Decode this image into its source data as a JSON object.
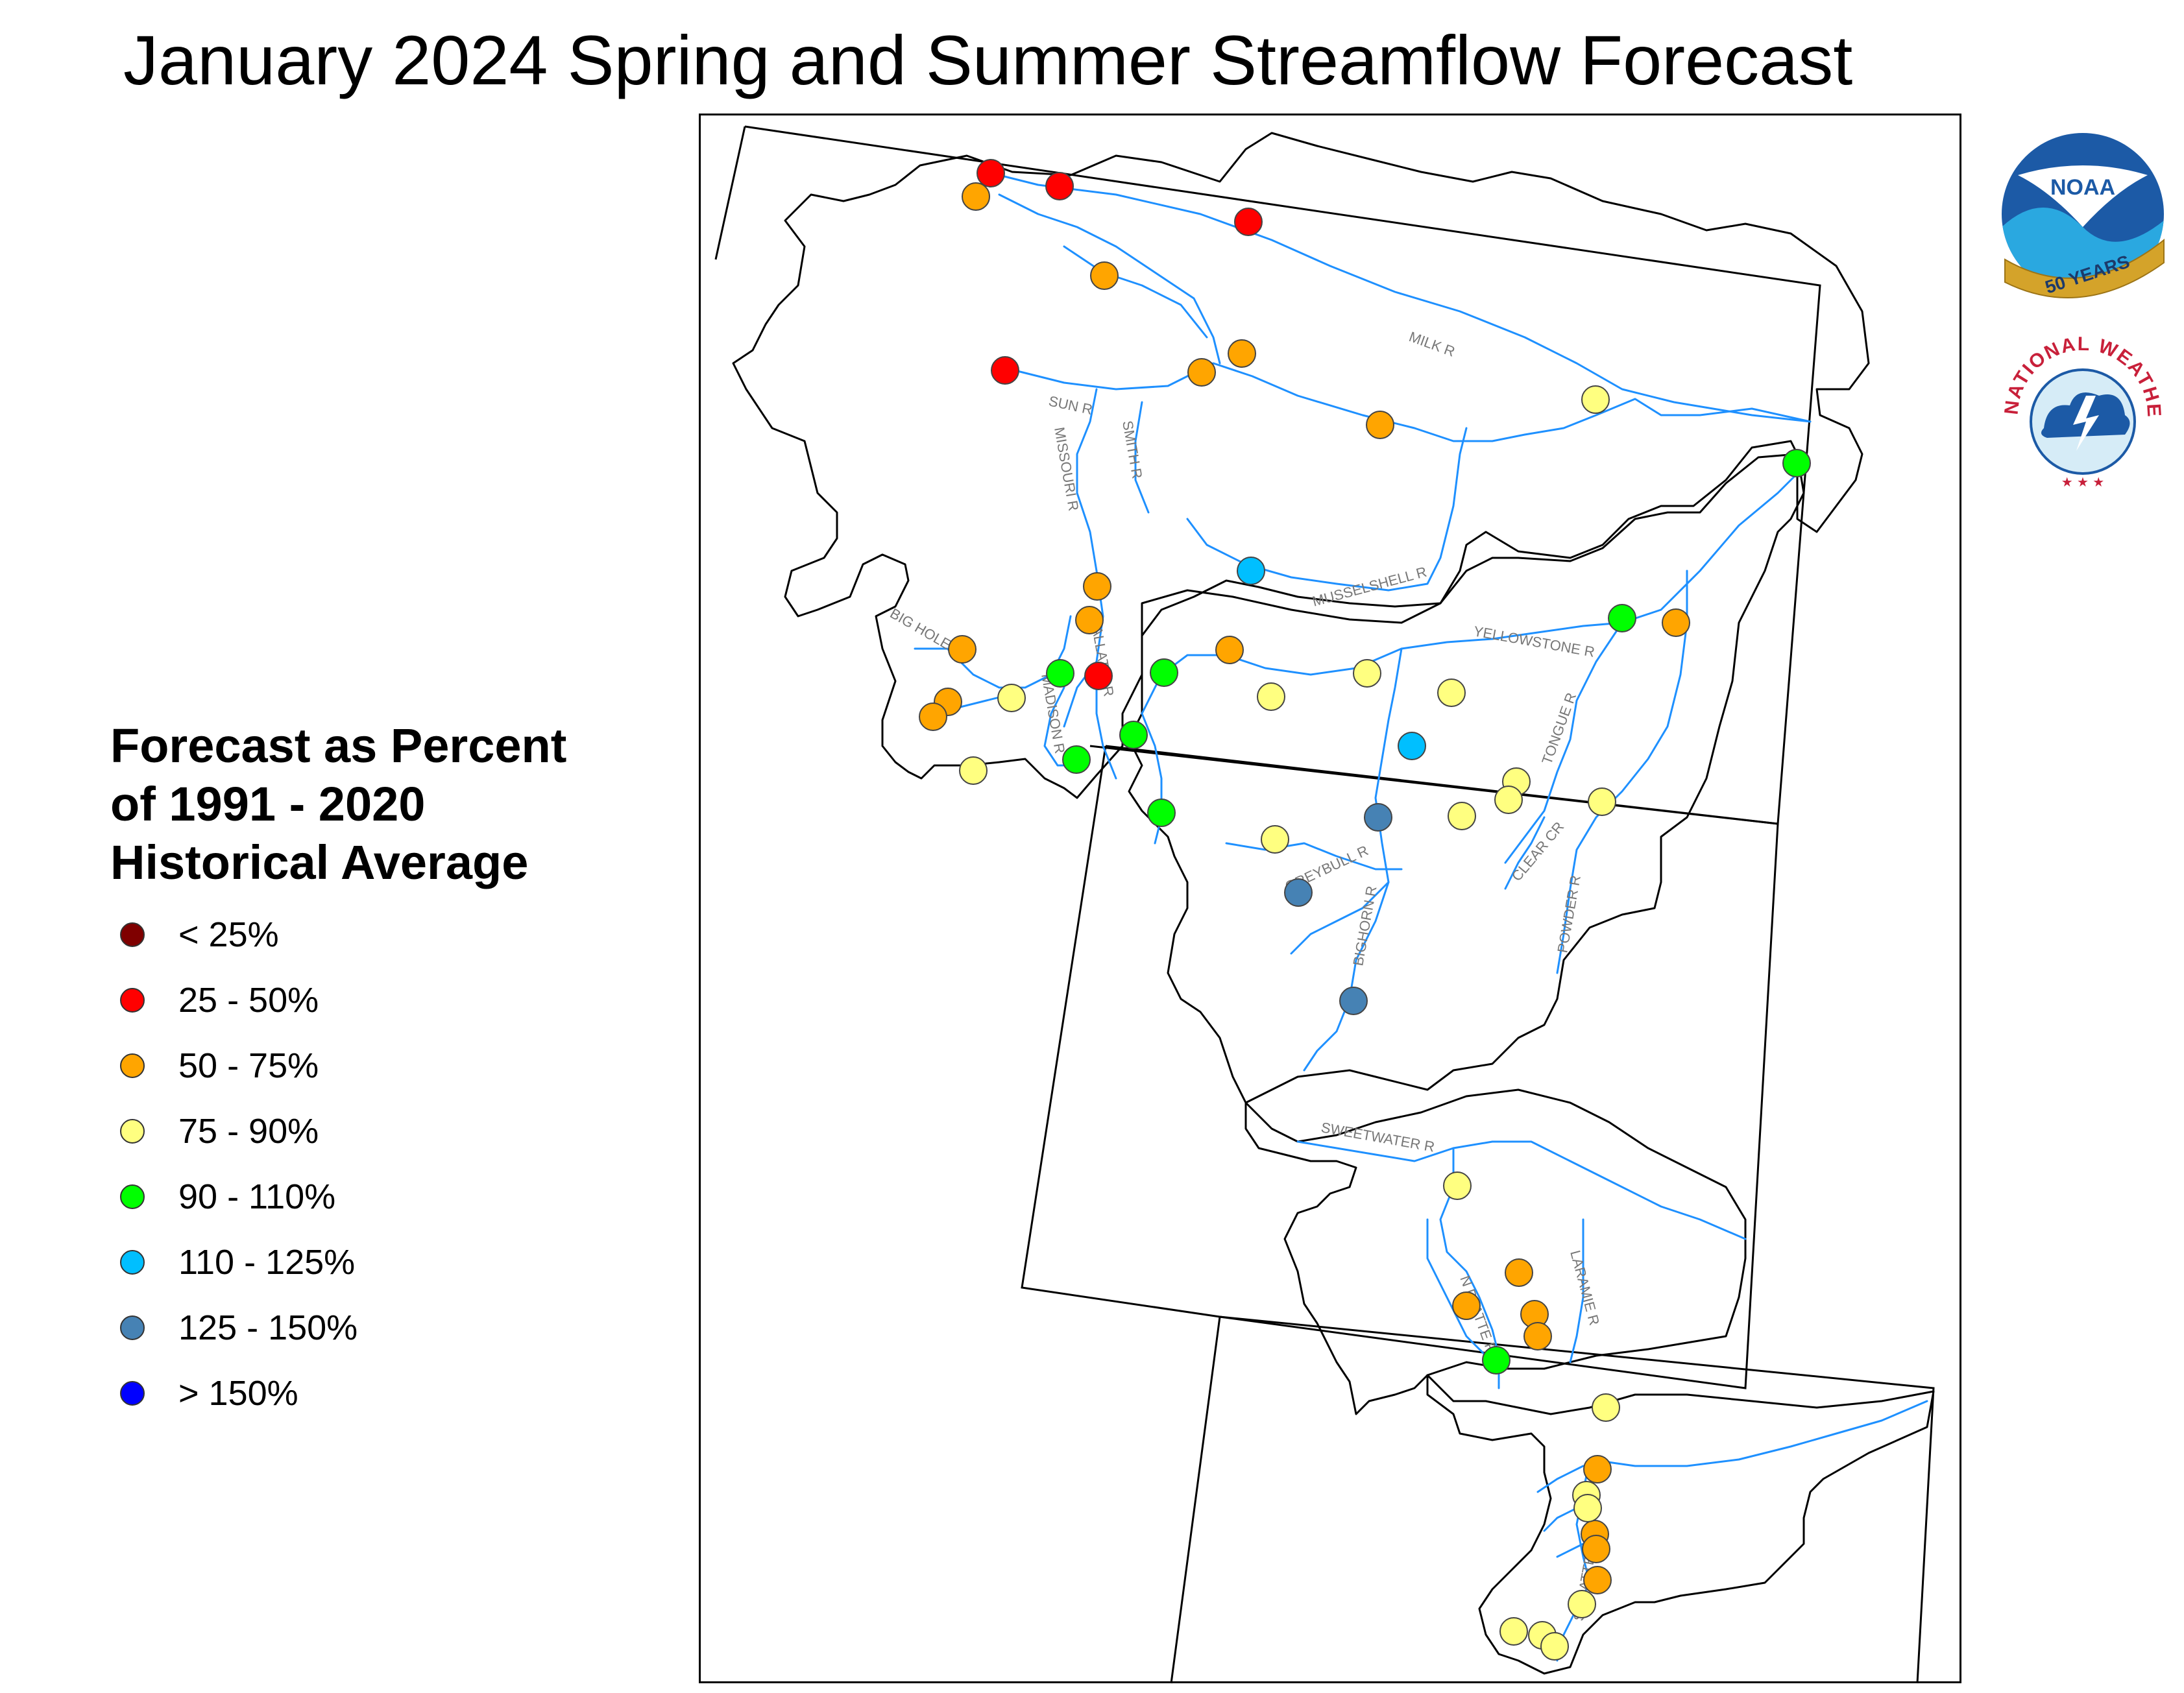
{
  "title": "January 2024 Spring and Summer Streamflow Forecast",
  "legend": {
    "title_lines": [
      "Forecast as Percent",
      "of 1991 - 2020",
      "Historical Average"
    ],
    "items": [
      {
        "label": "< 25%",
        "color": "#7f0000"
      },
      {
        "label": "25 - 50%",
        "color": "#ff0000"
      },
      {
        "label": "50 - 75%",
        "color": "#ffa500"
      },
      {
        "label": "75 - 90%",
        "color": "#ffff80"
      },
      {
        "label": "90 - 110%",
        "color": "#00ff00"
      },
      {
        "label": "110 - 125%",
        "color": "#00bfff"
      },
      {
        "label": "125 - 150%",
        "color": "#4682b4"
      },
      {
        "label": "> 150%",
        "color": "#0000ff"
      }
    ]
  },
  "logos": {
    "noaa": {
      "text": "NOAA",
      "ribbon": "50 YEARS",
      "icon": "noaa-logo-icon"
    },
    "nws": {
      "text": "NATIONAL WEATHER SERVICE",
      "icon": "nws-logo-icon"
    }
  },
  "river_labels": [
    "MILK R",
    "SUN R",
    "MISSOURI R",
    "SMITH R",
    "MUSSELSHELL R",
    "BIG HOLE R",
    "GALLATIN R",
    "MADISON R",
    "YELLOWSTONE R",
    "TONGUE R",
    "CLEAR CR",
    "POWDER R",
    "GREYBULL R",
    "BIGHORN R",
    "SWEETWATER R",
    "LARAMIE R",
    "N PLATTE R",
    "S PLATTE R"
  ],
  "colors": {
    "river": "#1e90ff",
    "basin": "#000000",
    "state": "#000000"
  }
}
